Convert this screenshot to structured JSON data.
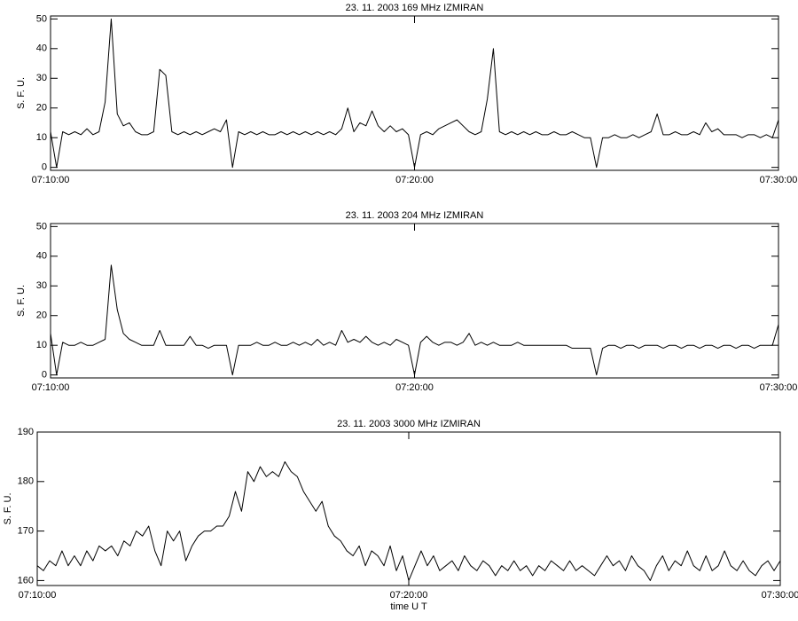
{
  "chart_data": [
    {
      "type": "line",
      "title": "23.  11.  2003    169  MHz    IZMIRAN",
      "ylabel": "S.  F.  U.",
      "color": "#000000",
      "x": [
        "07:10:00",
        "07:10:10",
        "07:10:20",
        "07:10:30",
        "07:10:40",
        "07:10:50",
        "07:11:00",
        "07:11:10",
        "07:11:20",
        "07:11:30",
        "07:11:40",
        "07:11:50",
        "07:12:00",
        "07:12:10",
        "07:12:20",
        "07:12:30",
        "07:12:40",
        "07:12:50",
        "07:13:00",
        "07:13:10",
        "07:13:20",
        "07:13:30",
        "07:13:40",
        "07:13:50",
        "07:14:00",
        "07:14:10",
        "07:14:20",
        "07:14:30",
        "07:14:40",
        "07:14:50",
        "07:15:00",
        "07:15:10",
        "07:15:20",
        "07:15:30",
        "07:15:40",
        "07:15:50",
        "07:16:00",
        "07:16:10",
        "07:16:20",
        "07:16:30",
        "07:16:40",
        "07:16:50",
        "07:17:00",
        "07:17:10",
        "07:17:20",
        "07:17:30",
        "07:17:40",
        "07:17:50",
        "07:18:00",
        "07:18:10",
        "07:18:20",
        "07:18:30",
        "07:18:40",
        "07:18:50",
        "07:19:00",
        "07:19:10",
        "07:19:20",
        "07:19:30",
        "07:19:40",
        "07:19:50",
        "07:20:00",
        "07:20:10",
        "07:20:20",
        "07:20:30",
        "07:20:40",
        "07:20:50",
        "07:21:00",
        "07:21:10",
        "07:21:20",
        "07:21:30",
        "07:21:40",
        "07:21:50",
        "07:22:00",
        "07:22:10",
        "07:22:20",
        "07:22:30",
        "07:22:40",
        "07:22:50",
        "07:23:00",
        "07:23:10",
        "07:23:20",
        "07:23:30",
        "07:23:40",
        "07:23:50",
        "07:24:00",
        "07:24:10",
        "07:24:20",
        "07:24:30",
        "07:24:40",
        "07:24:50",
        "07:25:00",
        "07:25:10",
        "07:25:20",
        "07:25:30",
        "07:25:40",
        "07:25:50",
        "07:26:00",
        "07:26:10",
        "07:26:20",
        "07:26:30",
        "07:26:40",
        "07:26:50",
        "07:27:00",
        "07:27:10",
        "07:27:20",
        "07:27:30",
        "07:27:40",
        "07:27:50",
        "07:28:00",
        "07:28:10",
        "07:28:20",
        "07:28:30",
        "07:28:40",
        "07:28:50",
        "07:29:00",
        "07:29:10",
        "07:29:20",
        "07:29:30",
        "07:29:40",
        "07:29:50",
        "07:30:00"
      ],
      "values": [
        12,
        0,
        12,
        11,
        12,
        11,
        13,
        11,
        12,
        22,
        50,
        18,
        14,
        15,
        12,
        11,
        11,
        12,
        33,
        31,
        12,
        11,
        12,
        11,
        12,
        11,
        12,
        13,
        12,
        16,
        0,
        12,
        11,
        12,
        11,
        12,
        11,
        11,
        12,
        11,
        12,
        11,
        12,
        11,
        12,
        11,
        12,
        11,
        13,
        20,
        12,
        15,
        14,
        19,
        14,
        12,
        14,
        12,
        13,
        11,
        0,
        11,
        12,
        11,
        13,
        14,
        15,
        16,
        14,
        12,
        11,
        12,
        23,
        40,
        12,
        11,
        12,
        11,
        12,
        11,
        12,
        11,
        11,
        12,
        11,
        11,
        12,
        11,
        10,
        10,
        0,
        10,
        10,
        11,
        10,
        10,
        11,
        10,
        11,
        12,
        18,
        11,
        11,
        12,
        11,
        11,
        12,
        11,
        15,
        12,
        13,
        11,
        11,
        11,
        10,
        11,
        11,
        10,
        11,
        10,
        16
      ],
      "xlim": [
        "07:10:00",
        "07:30:00"
      ],
      "xticks": [
        "07:10:00",
        "07:20:00",
        "07:30:00"
      ],
      "ylim": [
        -1,
        51
      ],
      "yticks": [
        0,
        10,
        20,
        30,
        40,
        50
      ]
    },
    {
      "type": "line",
      "title": "23.  11.  2003    204  MHz    IZMIRAN",
      "ylabel": "S.  F.  U.",
      "color": "#000000",
      "x": [
        "07:10:00",
        "07:10:10",
        "07:10:20",
        "07:10:30",
        "07:10:40",
        "07:10:50",
        "07:11:00",
        "07:11:10",
        "07:11:20",
        "07:11:30",
        "07:11:40",
        "07:11:50",
        "07:12:00",
        "07:12:10",
        "07:12:20",
        "07:12:30",
        "07:12:40",
        "07:12:50",
        "07:13:00",
        "07:13:10",
        "07:13:20",
        "07:13:30",
        "07:13:40",
        "07:13:50",
        "07:14:00",
        "07:14:10",
        "07:14:20",
        "07:14:30",
        "07:14:40",
        "07:14:50",
        "07:15:00",
        "07:15:10",
        "07:15:20",
        "07:15:30",
        "07:15:40",
        "07:15:50",
        "07:16:00",
        "07:16:10",
        "07:16:20",
        "07:16:30",
        "07:16:40",
        "07:16:50",
        "07:17:00",
        "07:17:10",
        "07:17:20",
        "07:17:30",
        "07:17:40",
        "07:17:50",
        "07:18:00",
        "07:18:10",
        "07:18:20",
        "07:18:30",
        "07:18:40",
        "07:18:50",
        "07:19:00",
        "07:19:10",
        "07:19:20",
        "07:19:30",
        "07:19:40",
        "07:19:50",
        "07:20:00",
        "07:20:10",
        "07:20:20",
        "07:20:30",
        "07:20:40",
        "07:20:50",
        "07:21:00",
        "07:21:10",
        "07:21:20",
        "07:21:30",
        "07:21:40",
        "07:21:50",
        "07:22:00",
        "07:22:10",
        "07:22:20",
        "07:22:30",
        "07:22:40",
        "07:22:50",
        "07:23:00",
        "07:23:10",
        "07:23:20",
        "07:23:30",
        "07:23:40",
        "07:23:50",
        "07:24:00",
        "07:24:10",
        "07:24:20",
        "07:24:30",
        "07:24:40",
        "07:24:50",
        "07:25:00",
        "07:25:10",
        "07:25:20",
        "07:25:30",
        "07:25:40",
        "07:25:50",
        "07:26:00",
        "07:26:10",
        "07:26:20",
        "07:26:30",
        "07:26:40",
        "07:26:50",
        "07:27:00",
        "07:27:10",
        "07:27:20",
        "07:27:30",
        "07:27:40",
        "07:27:50",
        "07:28:00",
        "07:28:10",
        "07:28:20",
        "07:28:30",
        "07:28:40",
        "07:28:50",
        "07:29:00",
        "07:29:10",
        "07:29:20",
        "07:29:30",
        "07:29:40",
        "07:29:50",
        "07:30:00"
      ],
      "values": [
        14,
        0,
        11,
        10,
        10,
        11,
        10,
        10,
        11,
        12,
        37,
        22,
        14,
        12,
        11,
        10,
        10,
        10,
        15,
        10,
        10,
        10,
        10,
        13,
        10,
        10,
        9,
        10,
        10,
        10,
        0,
        10,
        10,
        10,
        11,
        10,
        10,
        11,
        10,
        10,
        11,
        10,
        11,
        10,
        12,
        10,
        11,
        10,
        15,
        11,
        12,
        11,
        13,
        11,
        10,
        11,
        10,
        12,
        11,
        10,
        0,
        11,
        13,
        11,
        10,
        11,
        11,
        10,
        11,
        14,
        10,
        11,
        10,
        11,
        10,
        10,
        10,
        11,
        10,
        10,
        10,
        10,
        10,
        10,
        10,
        10,
        9,
        9,
        9,
        9,
        0,
        9,
        10,
        10,
        9,
        10,
        10,
        9,
        10,
        10,
        10,
        9,
        10,
        10,
        9,
        10,
        10,
        9,
        10,
        10,
        9,
        10,
        10,
        9,
        10,
        10,
        9,
        10,
        10,
        10,
        17
      ],
      "xlim": [
        "07:10:00",
        "07:30:00"
      ],
      "xticks": [
        "07:10:00",
        "07:20:00",
        "07:30:00"
      ],
      "ylim": [
        -1,
        51
      ],
      "yticks": [
        0,
        10,
        20,
        30,
        40,
        50
      ]
    },
    {
      "type": "line",
      "title": "23.  11.  2003    3000  MHz    IZMIRAN",
      "ylabel": "S.  F.  U.",
      "xlabel": "time  U T",
      "color": "#000000",
      "x": [
        "07:10:00",
        "07:10:10",
        "07:10:20",
        "07:10:30",
        "07:10:40",
        "07:10:50",
        "07:11:00",
        "07:11:10",
        "07:11:20",
        "07:11:30",
        "07:11:40",
        "07:11:50",
        "07:12:00",
        "07:12:10",
        "07:12:20",
        "07:12:30",
        "07:12:40",
        "07:12:50",
        "07:13:00",
        "07:13:10",
        "07:13:20",
        "07:13:30",
        "07:13:40",
        "07:13:50",
        "07:14:00",
        "07:14:10",
        "07:14:20",
        "07:14:30",
        "07:14:40",
        "07:14:50",
        "07:15:00",
        "07:15:10",
        "07:15:20",
        "07:15:30",
        "07:15:40",
        "07:15:50",
        "07:16:00",
        "07:16:10",
        "07:16:20",
        "07:16:30",
        "07:16:40",
        "07:16:50",
        "07:17:00",
        "07:17:10",
        "07:17:20",
        "07:17:30",
        "07:17:40",
        "07:17:50",
        "07:18:00",
        "07:18:10",
        "07:18:20",
        "07:18:30",
        "07:18:40",
        "07:18:50",
        "07:19:00",
        "07:19:10",
        "07:19:20",
        "07:19:30",
        "07:19:40",
        "07:19:50",
        "07:20:00",
        "07:20:10",
        "07:20:20",
        "07:20:30",
        "07:20:40",
        "07:20:50",
        "07:21:00",
        "07:21:10",
        "07:21:20",
        "07:21:30",
        "07:21:40",
        "07:21:50",
        "07:22:00",
        "07:22:10",
        "07:22:20",
        "07:22:30",
        "07:22:40",
        "07:22:50",
        "07:23:00",
        "07:23:10",
        "07:23:20",
        "07:23:30",
        "07:23:40",
        "07:23:50",
        "07:24:00",
        "07:24:10",
        "07:24:20",
        "07:24:30",
        "07:24:40",
        "07:24:50",
        "07:25:00",
        "07:25:10",
        "07:25:20",
        "07:25:30",
        "07:25:40",
        "07:25:50",
        "07:26:00",
        "07:26:10",
        "07:26:20",
        "07:26:30",
        "07:26:40",
        "07:26:50",
        "07:27:00",
        "07:27:10",
        "07:27:20",
        "07:27:30",
        "07:27:40",
        "07:27:50",
        "07:28:00",
        "07:28:10",
        "07:28:20",
        "07:28:30",
        "07:28:40",
        "07:28:50",
        "07:29:00",
        "07:29:10",
        "07:29:20",
        "07:29:30",
        "07:29:40",
        "07:29:50",
        "07:30:00"
      ],
      "values": [
        163,
        162,
        164,
        163,
        166,
        163,
        165,
        163,
        166,
        164,
        167,
        166,
        167,
        165,
        168,
        167,
        170,
        169,
        171,
        166,
        163,
        170,
        168,
        170,
        164,
        167,
        169,
        170,
        170,
        171,
        171,
        173,
        178,
        174,
        182,
        180,
        183,
        181,
        182,
        181,
        184,
        182,
        181,
        178,
        176,
        174,
        176,
        171,
        169,
        168,
        166,
        165,
        167,
        163,
        166,
        165,
        163,
        167,
        162,
        165,
        160,
        163,
        166,
        163,
        165,
        162,
        163,
        164,
        162,
        165,
        163,
        162,
        164,
        163,
        161,
        163,
        162,
        164,
        162,
        163,
        161,
        163,
        162,
        164,
        163,
        162,
        164,
        162,
        163,
        162,
        161,
        163,
        165,
        163,
        164,
        162,
        165,
        163,
        162,
        160,
        163,
        165,
        162,
        164,
        163,
        166,
        163,
        162,
        165,
        162,
        163,
        166,
        163,
        162,
        164,
        162,
        161,
        163,
        164,
        162,
        164
      ],
      "xlim": [
        "07:10:00",
        "07:30:00"
      ],
      "xticks": [
        "07:10:00",
        "07:20:00",
        "07:30:00"
      ],
      "ylim": [
        159,
        190
      ],
      "yticks": [
        160,
        170,
        180,
        190
      ]
    }
  ]
}
